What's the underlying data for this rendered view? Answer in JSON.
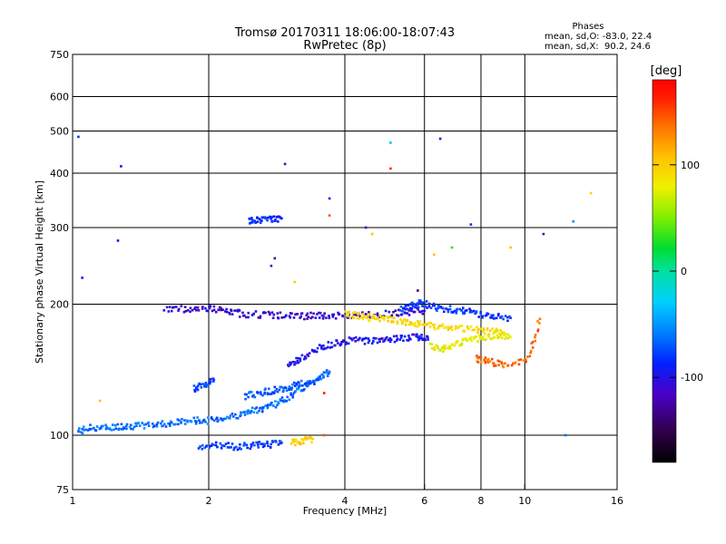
{
  "chart_data": {
    "type": "scatter",
    "title": "Tromsø 20170311 18:06:00-18:07:43",
    "subtitle": "RwPretec (8p)",
    "xlabel": "Frequency [MHz]",
    "ylabel": "Stationary phase Virtual Height [km]",
    "x_scale": "log",
    "y_scale": "log",
    "xlim": [
      1,
      16
    ],
    "ylim": [
      75,
      750
    ],
    "x_ticks": [
      "1",
      "2",
      "4",
      "6",
      "8",
      "10",
      "16"
    ],
    "x_tick_values": [
      1,
      2,
      4,
      6,
      8,
      10,
      16
    ],
    "y_ticks": [
      "75",
      "100",
      "200",
      "300",
      "400",
      "500",
      "600",
      "750"
    ],
    "y_tick_values": [
      75,
      100,
      200,
      300,
      400,
      500,
      600,
      750
    ],
    "grid": true,
    "colorbar": {
      "label": "[deg]",
      "range": [
        -180,
        180
      ],
      "ticks": [
        "100",
        "0",
        "-100"
      ],
      "tick_values": [
        100,
        0,
        -100
      ]
    },
    "phases_box": {
      "title": "Phases",
      "line1": "mean, sd,O: -83.0, 22.4",
      "line2": "mean, sd,X:  90.2, 24.6"
    },
    "traces": [
      {
        "x": [
          1.03,
          1.1,
          1.2,
          1.3,
          1.4,
          1.55,
          1.7,
          1.85,
          2.0,
          2.2,
          2.4,
          2.6,
          2.8,
          3.0,
          3.2,
          3.5,
          3.7
        ],
        "y": [
          102,
          104,
          104,
          105,
          105,
          106,
          107,
          108,
          108,
          110,
          112,
          115,
          118,
          122,
          128,
          136,
          140
        ],
        "phase": -70
      },
      {
        "x": [
          1.6,
          1.8,
          2.0,
          2.2,
          2.4,
          2.7,
          3.0,
          3.3,
          3.6,
          4.0,
          4.4,
          4.9,
          5.5,
          6.0
        ],
        "y": [
          195,
          195,
          196,
          192,
          190,
          189,
          188,
          188,
          188,
          188,
          189,
          190,
          192,
          193
        ],
        "phase": -115
      },
      {
        "x": [
          3.0,
          3.2,
          3.5,
          3.8,
          4.1,
          4.5,
          4.9,
          5.3,
          5.8,
          6.1
        ],
        "y": [
          145,
          150,
          158,
          163,
          165,
          165,
          166,
          167,
          168,
          168
        ],
        "phase": -105
      },
      {
        "x": [
          2.4,
          2.6,
          2.8,
          3.0,
          3.2,
          3.5
        ],
        "y": [
          123,
          125,
          127,
          129,
          131,
          134
        ],
        "phase": -80
      },
      {
        "x": [
          1.85,
          1.95,
          2.05
        ],
        "y": [
          128,
          130,
          133
        ],
        "phase": -85
      },
      {
        "x": [
          4.0,
          4.3,
          4.6,
          5.0,
          5.4,
          5.8,
          6.3,
          6.8,
          7.5,
          8.2,
          9.0
        ],
        "y": [
          190,
          188,
          186,
          184,
          182,
          180,
          178,
          176,
          175,
          174,
          172
        ],
        "phase": 95
      },
      {
        "x": [
          6.2,
          6.6,
          7.0,
          7.5,
          8.0,
          8.7,
          9.3
        ],
        "y": [
          160,
          158,
          162,
          165,
          167,
          170,
          168
        ],
        "phase": 80
      },
      {
        "x": [
          2.45,
          2.6,
          2.75,
          2.9
        ],
        "y": [
          310,
          312,
          314,
          315
        ],
        "phase": -95
      },
      {
        "x": [
          1.9,
          2.1,
          2.3,
          2.5,
          2.7,
          2.9
        ],
        "y": [
          94,
          95,
          94,
          95,
          95,
          96
        ],
        "phase": -85
      },
      {
        "x": [
          3.05,
          3.2,
          3.4
        ],
        "y": [
          96,
          97,
          98
        ],
        "phase": 100
      },
      {
        "x": [
          5.3,
          5.6,
          5.9,
          6.3,
          6.8,
          7.3,
          7.9,
          8.5,
          9.3
        ],
        "y": [
          195,
          198,
          201,
          197,
          195,
          193,
          190,
          188,
          186
        ],
        "phase": -90
      },
      {
        "x": [
          7.8,
          8.3,
          9.0,
          10.2,
          10.8
        ],
        "y": [
          150,
          148,
          145,
          150,
          185
        ],
        "phase": 140
      }
    ],
    "scattered_points": [
      {
        "x": 1.03,
        "y": 485,
        "phase": -90
      },
      {
        "x": 1.28,
        "y": 415,
        "phase": -100
      },
      {
        "x": 1.26,
        "y": 280,
        "phase": -105
      },
      {
        "x": 2.95,
        "y": 420,
        "phase": -120
      },
      {
        "x": 3.7,
        "y": 350,
        "phase": -100
      },
      {
        "x": 3.7,
        "y": 320,
        "phase": 150
      },
      {
        "x": 4.45,
        "y": 300,
        "phase": -110
      },
      {
        "x": 4.6,
        "y": 290,
        "phase": 110
      },
      {
        "x": 5.05,
        "y": 470,
        "phase": -40
      },
      {
        "x": 5.05,
        "y": 410,
        "phase": 160
      },
      {
        "x": 6.5,
        "y": 480,
        "phase": -110
      },
      {
        "x": 7.6,
        "y": 305,
        "phase": -90
      },
      {
        "x": 9.3,
        "y": 270,
        "phase": 110
      },
      {
        "x": 11.0,
        "y": 290,
        "phase": -120
      },
      {
        "x": 12.8,
        "y": 310,
        "phase": -60
      },
      {
        "x": 14.0,
        "y": 360,
        "phase": 100
      },
      {
        "x": 2.75,
        "y": 245,
        "phase": -110
      },
      {
        "x": 2.8,
        "y": 255,
        "phase": -130
      },
      {
        "x": 6.3,
        "y": 260,
        "phase": 110
      },
      {
        "x": 6.9,
        "y": 270,
        "phase": 30
      },
      {
        "x": 3.1,
        "y": 225,
        "phase": 100
      },
      {
        "x": 5.8,
        "y": 215,
        "phase": -140
      },
      {
        "x": 1.05,
        "y": 230,
        "phase": -100
      },
      {
        "x": 3.6,
        "y": 100,
        "phase": 150
      },
      {
        "x": 3.6,
        "y": 125,
        "phase": 170
      },
      {
        "x": 1.15,
        "y": 120,
        "phase": 110
      },
      {
        "x": 12.3,
        "y": 100,
        "phase": -70
      }
    ]
  }
}
